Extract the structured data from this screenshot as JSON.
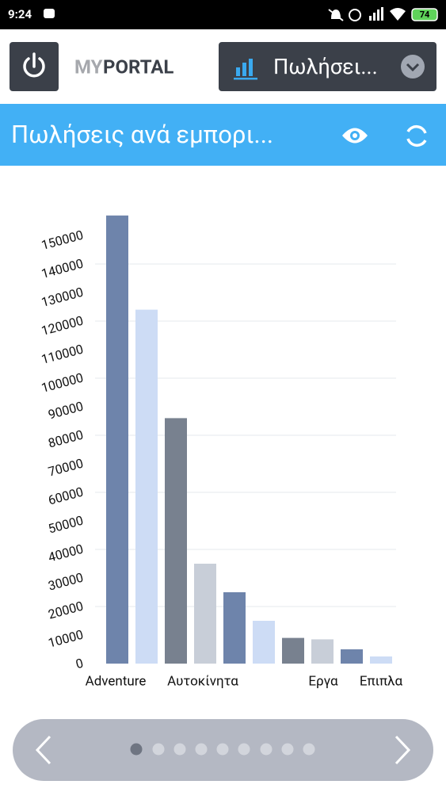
{
  "status_bar": {
    "time": "9:24",
    "battery": "74"
  },
  "header": {
    "brand_my": "MY",
    "brand_portal": "PORTAL",
    "dropdown": "Πωλήσει..."
  },
  "title_bar": {
    "title": "Πωλήσεις ανά εμπορι..."
  },
  "chart_data": {
    "type": "bar",
    "categories": [
      "Adventure",
      "Αυτοκίνητα",
      null,
      "Εργα",
      "Επιπλα"
    ],
    "series": [
      {
        "colors": [
          "#6e84ab",
          "#78818f",
          "#6e84ab",
          "#78818f",
          "#6e84ab"
        ],
        "values": [
          157000,
          86000,
          25000,
          9000,
          5000
        ]
      },
      {
        "colors": [
          "#cddcf5",
          "#c8ced8",
          "#cddcf5",
          "#c8ced8",
          "#cddcf5"
        ],
        "values": [
          124000,
          35000,
          15000,
          8500,
          2500
        ]
      }
    ],
    "ylim": [
      0,
      160000
    ],
    "yticks": [
      0,
      10000,
      20000,
      30000,
      40000,
      50000,
      60000,
      70000,
      80000,
      90000,
      100000,
      110000,
      120000,
      130000,
      140000,
      150000
    ],
    "grid": true
  }
}
